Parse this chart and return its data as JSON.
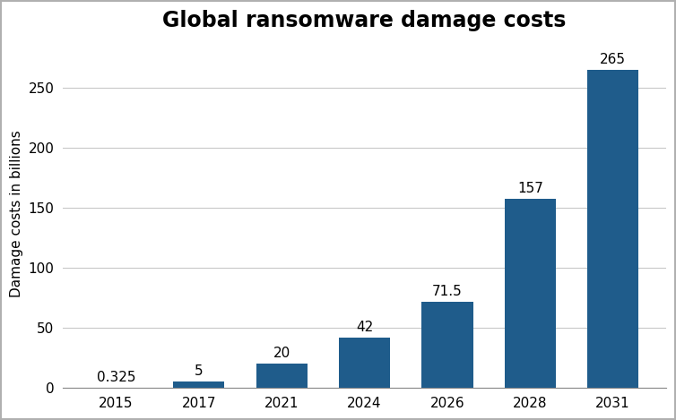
{
  "title": "Global ransomware damage costs",
  "ylabel": "Damage costs in billions",
  "categories": [
    "2015",
    "2017",
    "2021",
    "2024",
    "2026",
    "2028",
    "2031"
  ],
  "values": [
    0.325,
    5,
    20,
    42,
    71.5,
    157,
    265
  ],
  "bar_color": "#1f5c8b",
  "ylim": [
    0,
    290
  ],
  "yticks": [
    0,
    50,
    100,
    150,
    200,
    250
  ],
  "title_fontsize": 17,
  "label_fontsize": 11,
  "tick_fontsize": 11,
  "annotation_fontsize": 11,
  "background_color": "#ffffff",
  "grid_color": "#c8c8c8",
  "bar_width": 0.62,
  "figure_border_color": "#b0b0b0"
}
